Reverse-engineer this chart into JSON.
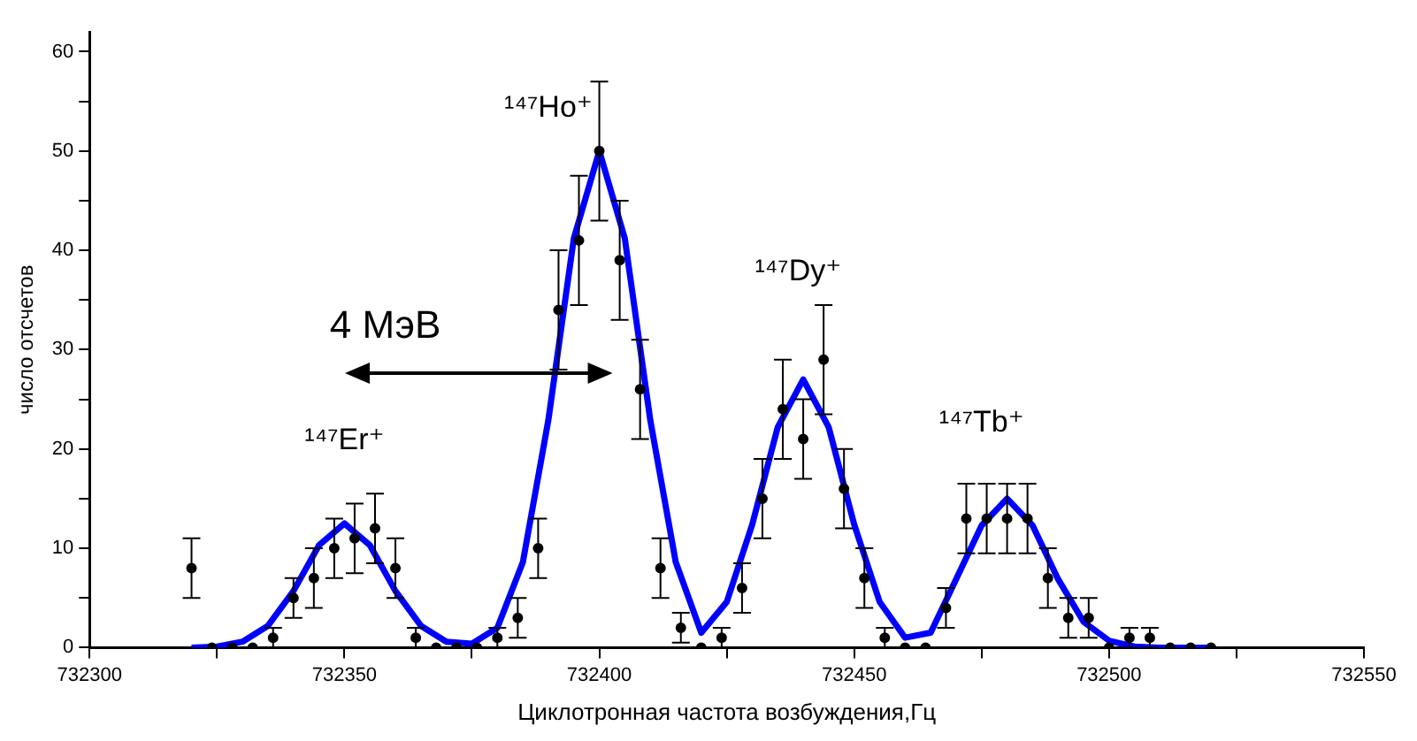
{
  "chart_data": {
    "type": "scatter",
    "xlabel": "Циклотронная частота возбуждения,Гц",
    "ylabel": "число отсчетов",
    "xlim": [
      732300,
      732550
    ],
    "xticks": [
      732300,
      {
        "value": 732325,
        "label": null
      },
      732350,
      {
        "value": 732375,
        "label": null
      },
      732400,
      {
        "value": 732425,
        "label": null
      },
      732450,
      {
        "value": 732475,
        "label": null
      },
      732500,
      {
        "value": 732525,
        "label": null
      },
      732550
    ],
    "ylim": [
      0,
      62
    ],
    "yticks": [
      0,
      {
        "value": 5,
        "label": null
      },
      10,
      {
        "value": 15,
        "label": null
      },
      20,
      {
        "value": 25,
        "label": null
      },
      30,
      {
        "value": 35,
        "label": null
      },
      40,
      {
        "value": 45,
        "label": null
      },
      50,
      {
        "value": 55,
        "label": null
      },
      60
    ],
    "grid": false,
    "legend": false,
    "series": [
      {
        "color": "#000000",
        "marker": "circle",
        "x": [
          732320,
          732324,
          732328,
          732332,
          732336,
          732340,
          732344,
          732348,
          732352,
          732356,
          732360,
          732364,
          732368,
          732372,
          732376,
          732380,
          732384,
          732388,
          732392,
          732396,
          732400,
          732404,
          732408,
          732412,
          732416,
          732420,
          732424,
          732428,
          732432,
          732436,
          732440,
          732444,
          732448,
          732452,
          732456,
          732460,
          732464,
          732468,
          732472,
          732476,
          732480,
          732484,
          732488,
          732492,
          732496,
          732500,
          732504,
          732508,
          732512,
          732516,
          732520
        ],
        "values": [
          8,
          0,
          0,
          0,
          1,
          5,
          7,
          10,
          11,
          12,
          8,
          1,
          0,
          0,
          0,
          1,
          3,
          10,
          34,
          41,
          50,
          39,
          26,
          8,
          2,
          0,
          1,
          6,
          15,
          24,
          21,
          29,
          16,
          7,
          1,
          0,
          0,
          4,
          13,
          13,
          13,
          13,
          7,
          3,
          3,
          0,
          1,
          1,
          0,
          0,
          0
        ],
        "errors": [
          3,
          null,
          null,
          null,
          [
            0,
            2
          ],
          2,
          3,
          3,
          3.5,
          3.5,
          3,
          [
            0,
            2
          ],
          null,
          null,
          null,
          [
            0,
            2
          ],
          2,
          3,
          6,
          6.5,
          7,
          6,
          5,
          3,
          1.5,
          null,
          [
            0,
            2
          ],
          2.5,
          4,
          5,
          4,
          5.5,
          4,
          3,
          [
            0,
            2
          ],
          null,
          null,
          2,
          3.5,
          3.5,
          3.5,
          3.5,
          3,
          2,
          2,
          null,
          [
            0,
            2
          ],
          [
            0,
            2
          ],
          null,
          null,
          null
        ]
      },
      {
        "type": "line",
        "color": "#0000ff",
        "marker": "none",
        "x": [
          732320,
          732325,
          732330,
          732335,
          732340,
          732345,
          732350,
          732355,
          732360,
          732365,
          732370,
          732375,
          732380,
          732385,
          732390,
          732395,
          732400,
          732405,
          732410,
          732415,
          732420,
          732425,
          732430,
          732435,
          732440,
          732445,
          732450,
          732455,
          732460,
          732465,
          732470,
          732475,
          732480,
          732485,
          732490,
          732495,
          732500,
          732505,
          732510,
          732515,
          732520
        ],
        "values": [
          0,
          0.1,
          0.6,
          2.2,
          5.7,
          10.3,
          12.5,
          10.3,
          5.7,
          2.2,
          0.6,
          0.4,
          2,
          8.6,
          22.9,
          41.2,
          50,
          41.2,
          22.9,
          8.6,
          1.5,
          4.6,
          12.4,
          22.2,
          27,
          22.2,
          12.4,
          4.6,
          1,
          1.5,
          6.9,
          12.3,
          15,
          12.3,
          6.9,
          2.6,
          0.7,
          0.1,
          0,
          0,
          0
        ]
      }
    ],
    "annotations": [
      "¹⁴⁷Er⁺",
      "¹⁴⁷Ho⁺",
      "¹⁴⁷Dy⁺",
      "¹⁴⁷Tb⁺",
      "4 МэВ"
    ]
  }
}
